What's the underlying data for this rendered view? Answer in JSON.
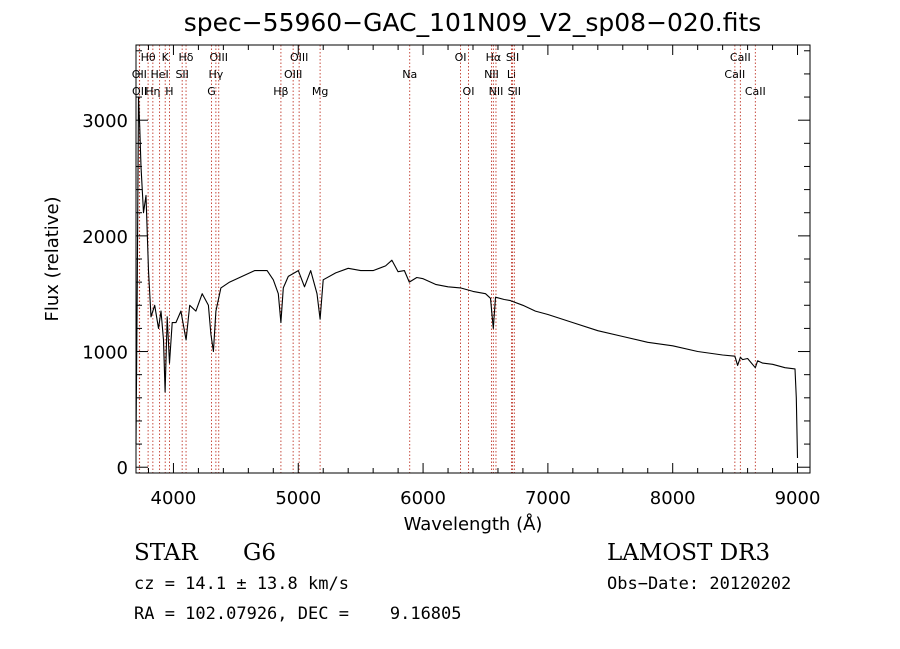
{
  "chart_data": {
    "type": "line",
    "title": "spec−55960−GAC_101N09_V2_sp08−020.fits",
    "xlabel": "Wavelength (Å)",
    "ylabel": "Flux (relative)",
    "xlim": [
      3700,
      9100
    ],
    "ylim": [
      -50,
      3650
    ],
    "xticks": [
      4000,
      5000,
      6000,
      7000,
      8000,
      9000
    ],
    "yticks": [
      0,
      1000,
      2000,
      3000
    ],
    "series": [
      {
        "name": "spectrum",
        "x": [
          3700,
          3710,
          3720,
          3730,
          3740,
          3760,
          3780,
          3800,
          3820,
          3850,
          3880,
          3900,
          3920,
          3933,
          3950,
          3968,
          3990,
          4020,
          4060,
          4101,
          4130,
          4180,
          4230,
          4280,
          4300,
          4320,
          4340,
          4380,
          4450,
          4550,
          4650,
          4750,
          4800,
          4840,
          4861,
          4880,
          4920,
          5000,
          5050,
          5100,
          5150,
          5175,
          5200,
          5300,
          5400,
          5500,
          5600,
          5700,
          5750,
          5800,
          5850,
          5890,
          5950,
          6000,
          6100,
          6200,
          6300,
          6400,
          6500,
          6540,
          6563,
          6580,
          6650,
          6700,
          6800,
          6900,
          7000,
          7200,
          7400,
          7600,
          7800,
          8000,
          8200,
          8400,
          8498,
          8520,
          8542,
          8560,
          8600,
          8662,
          8680,
          8720,
          8800,
          8900,
          8980,
          8990,
          9000
        ],
        "values": [
          200,
          1500,
          3200,
          2950,
          2600,
          2200,
          2350,
          1700,
          1300,
          1400,
          1200,
          1350,
          1100,
          650,
          1300,
          900,
          1250,
          1250,
          1350,
          1100,
          1400,
          1350,
          1500,
          1400,
          1150,
          1000,
          1350,
          1550,
          1600,
          1650,
          1700,
          1700,
          1620,
          1500,
          1250,
          1550,
          1650,
          1700,
          1560,
          1700,
          1500,
          1280,
          1620,
          1680,
          1720,
          1700,
          1700,
          1740,
          1790,
          1690,
          1700,
          1600,
          1640,
          1630,
          1580,
          1560,
          1550,
          1520,
          1500,
          1460,
          1200,
          1470,
          1450,
          1440,
          1400,
          1350,
          1320,
          1250,
          1180,
          1130,
          1080,
          1050,
          1000,
          970,
          960,
          880,
          950,
          930,
          940,
          860,
          920,
          900,
          890,
          860,
          850,
          600,
          80
        ]
      }
    ],
    "lines": [
      {
        "label": "Hθ",
        "wavelength": 3797,
        "row": 1
      },
      {
        "label": "OII",
        "wavelength": 3727,
        "row": 2
      },
      {
        "label": "OII",
        "wavelength": 3729,
        "row": 3
      },
      {
        "label": "Hη",
        "wavelength": 3835,
        "row": 3
      },
      {
        "label": "HeI",
        "wavelength": 3889,
        "row": 2
      },
      {
        "label": "K",
        "wavelength": 3934,
        "row": 1
      },
      {
        "label": "H",
        "wavelength": 3968,
        "row": 3
      },
      {
        "label": "SII",
        "wavelength": 4070,
        "row": 2
      },
      {
        "label": "Hδ",
        "wavelength": 4101,
        "row": 1
      },
      {
        "label": "OIII",
        "wavelength": 4363,
        "row": 1
      },
      {
        "label": "Hγ",
        "wavelength": 4340,
        "row": 2
      },
      {
        "label": "G",
        "wavelength": 4305,
        "row": 3
      },
      {
        "label": "Hβ",
        "wavelength": 4861,
        "row": 3
      },
      {
        "label": "OIII",
        "wavelength": 5007,
        "row": 1
      },
      {
        "label": "OIII",
        "wavelength": 4959,
        "row": 2
      },
      {
        "label": "Mg",
        "wavelength": 5175,
        "row": 3
      },
      {
        "label": "Na",
        "wavelength": 5893,
        "row": 2
      },
      {
        "label": "OI",
        "wavelength": 6300,
        "row": 1
      },
      {
        "label": "OI",
        "wavelength": 6364,
        "row": 3
      },
      {
        "label": "Hα",
        "wavelength": 6563,
        "row": 1
      },
      {
        "label": "NII",
        "wavelength": 6548,
        "row": 2
      },
      {
        "label": "NII",
        "wavelength": 6584,
        "row": 3
      },
      {
        "label": "SII",
        "wavelength": 6717,
        "row": 1
      },
      {
        "label": "Li",
        "wavelength": 6708,
        "row": 2
      },
      {
        "label": "SII",
        "wavelength": 6731,
        "row": 3
      },
      {
        "label": "CaII",
        "wavelength": 8542,
        "row": 1
      },
      {
        "label": "CaII",
        "wavelength": 8498,
        "row": 2
      },
      {
        "label": "CaII",
        "wavelength": 8662,
        "row": 3
      }
    ]
  },
  "info": {
    "class": "STAR",
    "subclass": "G6",
    "survey": "LAMOST DR3",
    "cz": "cz = 14.1 ± 13.8 km/s",
    "obs_date": "Obs−Date: 20120202",
    "coords": "RA = 102.07926, DEC =    9.16805"
  },
  "colors": {
    "spectrum": "#000000",
    "line_markers": "#c0392b",
    "axes": "#000000"
  }
}
